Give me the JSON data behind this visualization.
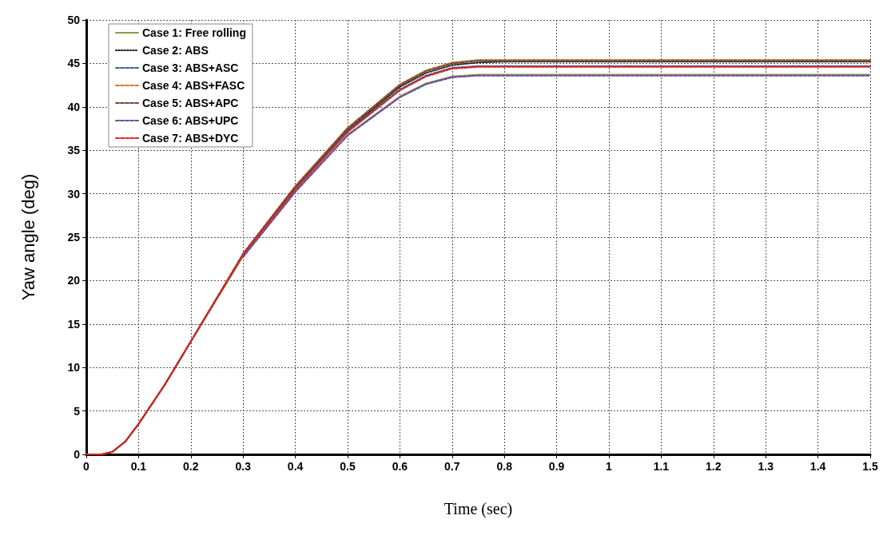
{
  "chart_data": {
    "type": "line",
    "xlabel": "Time (sec)",
    "ylabel": "Yaw angle (deg)",
    "x": [
      0,
      0.03,
      0.05,
      0.075,
      0.1,
      0.15,
      0.2,
      0.3,
      0.4,
      0.5,
      0.6,
      0.65,
      0.7,
      0.75,
      0.8,
      1.5
    ],
    "series": [
      {
        "name": "Case 1: Free rolling",
        "color": "#8a9a4a",
        "line_style": "solid",
        "values": [
          0,
          0,
          0.3,
          1.5,
          3.5,
          8,
          13,
          22.8,
          30.3,
          36.8,
          41.2,
          42.7,
          43.5,
          43.7,
          43.7,
          43.7
        ]
      },
      {
        "name": "Case 2: ABS",
        "color": "#222222",
        "line_style": "dotted",
        "values": [
          0,
          0,
          0.3,
          1.5,
          3.5,
          8,
          13,
          23,
          30.7,
          37.3,
          42.3,
          43.9,
          44.8,
          45.1,
          45.2,
          45.2
        ]
      },
      {
        "name": "Case 3: ABS+ASC",
        "color": "#3a5fa0",
        "line_style": "dashed",
        "values": [
          null,
          null,
          null,
          null,
          null,
          null,
          null,
          null,
          30.6,
          37.2,
          42,
          43.6,
          44.5,
          44.7,
          44.7,
          44.7
        ]
      },
      {
        "name": "Case 4: ABS+FASC",
        "color": "#d07a30",
        "line_style": "dashed",
        "values": [
          null,
          null,
          null,
          null,
          null,
          null,
          null,
          23.1,
          30.9,
          37.6,
          42.6,
          44.2,
          45.1,
          45.4,
          45.4,
          45.4
        ]
      },
      {
        "name": "Case 5: ABS+APC",
        "color": "#6b4a3a",
        "line_style": "dashed",
        "values": [
          0,
          0,
          0.3,
          1.5,
          3.5,
          8,
          13,
          23.1,
          30.8,
          37.5,
          42.5,
          44.1,
          45,
          45.3,
          45.3,
          45.3
        ]
      },
      {
        "name": "Case 6: ABS+UPC",
        "color": "#6a4aa8",
        "line_style": "dashed",
        "values": [
          null,
          null,
          null,
          null,
          null,
          null,
          null,
          22.7,
          30.2,
          36.7,
          41.1,
          42.6,
          43.4,
          43.6,
          43.6,
          43.6
        ]
      },
      {
        "name": "Case 7: ABS+DYC",
        "color": "#e02020",
        "line_style": "dashed",
        "values": [
          0,
          0,
          0.3,
          1.5,
          3.5,
          8,
          13,
          23,
          30.5,
          37.1,
          41.9,
          43.5,
          44.4,
          44.6,
          44.6,
          44.6
        ]
      }
    ],
    "xlim": [
      0,
      1.5
    ],
    "xticks": [
      0,
      0.1,
      0.2,
      0.3,
      0.4,
      0.5,
      0.6,
      0.7,
      0.8,
      0.9,
      1,
      1.1,
      1.2,
      1.3,
      1.4,
      1.5
    ],
    "ylim": [
      0,
      50
    ],
    "yticks": [
      0,
      5,
      10,
      15,
      20,
      25,
      30,
      35,
      40,
      45,
      50
    ],
    "grid": true,
    "legend": "top left",
    "marker": "none"
  }
}
